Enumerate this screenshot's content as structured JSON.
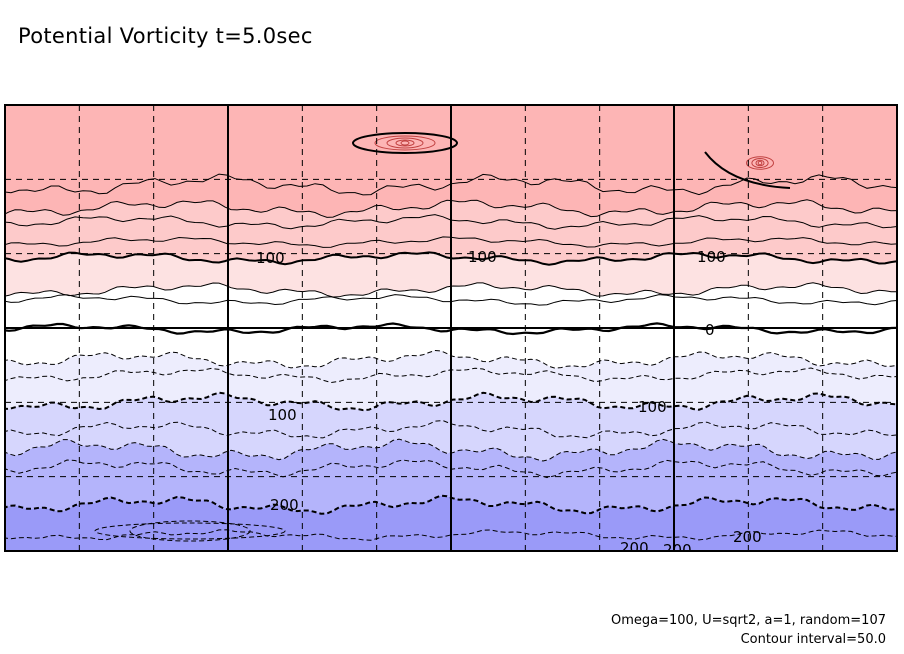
{
  "title": "Potential Vorticity t=5.0sec",
  "footnote": {
    "params": "Omega=100, U=sqrt2, a=1, random=107",
    "interval": "Contour interval=50.0"
  },
  "chart_data": {
    "type": "heatmap",
    "title": "Potential Vorticity t=5.0sec",
    "description_fields": "latitude bands of potential vorticity, positive in north (red), negative in south (blue)",
    "contour_interval": 50.0,
    "bands": [
      {
        "from": 300,
        "to": 200,
        "color": "#fdb5b5"
      },
      {
        "from": 200,
        "to": 100,
        "color": "#fdcaca"
      },
      {
        "from": 100,
        "to": 50,
        "color": "#fde2e2"
      },
      {
        "from": 50,
        "to": 0,
        "color": "#ffffff"
      },
      {
        "from": 0,
        "to": -50,
        "color": "#ffffff"
      },
      {
        "from": -50,
        "to": -100,
        "color": "#ededfd"
      },
      {
        "from": -100,
        "to": -150,
        "color": "#d6d6fd"
      },
      {
        "from": -150,
        "to": -200,
        "color": "#b4b4fb"
      },
      {
        "from": -200,
        "to": -250,
        "color": "#9a9af8"
      }
    ],
    "contour_labels": [
      {
        "text": "100",
        "sign": "positive"
      },
      {
        "text": "100",
        "sign": "positive"
      },
      {
        "text": "100",
        "sign": "positive"
      },
      {
        "text": "0",
        "sign": "zero"
      },
      {
        "text": "100",
        "sign": "negative"
      },
      {
        "text": "100",
        "sign": "negative"
      },
      {
        "text": "200",
        "sign": "negative"
      },
      {
        "text": "200",
        "sign": "negative"
      },
      {
        "text": "200",
        "sign": "negative"
      },
      {
        "text": "200",
        "sign": "negative"
      }
    ],
    "grid": true
  }
}
